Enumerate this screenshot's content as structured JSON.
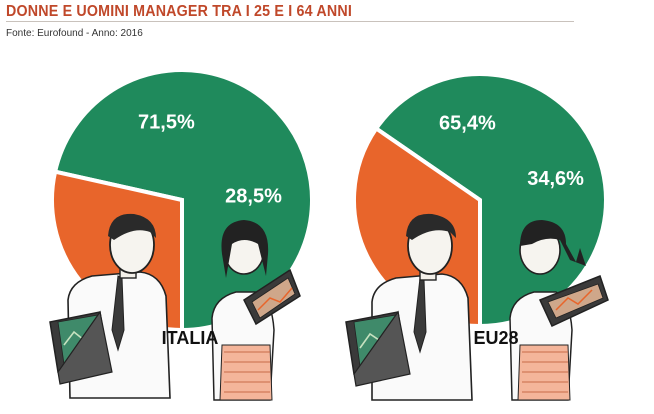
{
  "header": {
    "title": "DONNE E UOMINI MANAGER TRA I 25 E I 64 ANNI",
    "source": "Fonte: Eurofound - Anno: 2016"
  },
  "colors": {
    "men": "#1f8a5c",
    "women": "#e8652b",
    "title": "#c0482a"
  },
  "chart_data": [
    {
      "type": "pie",
      "label": "ITALIA",
      "slices": [
        {
          "value": 71.5,
          "label": "71,5%",
          "color": "#1f8a5c"
        },
        {
          "value": 28.5,
          "label": "28,5%",
          "color": "#e8652b"
        }
      ]
    },
    {
      "type": "pie",
      "label": "EU28",
      "slices": [
        {
          "value": 65.4,
          "label": "65,4%",
          "color": "#1f8a5c"
        },
        {
          "value": 34.6,
          "label": "34,6%",
          "color": "#e8652b"
        }
      ]
    }
  ]
}
